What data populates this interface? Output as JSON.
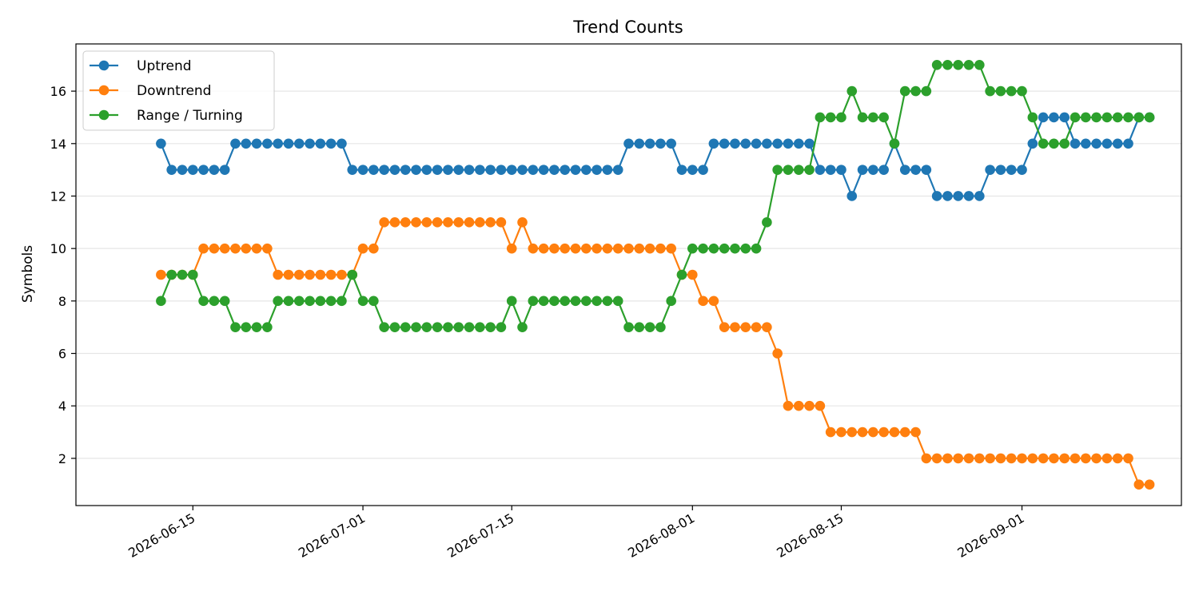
{
  "chart_data": {
    "type": "line",
    "title": "Trend Counts",
    "xlabel": "",
    "ylabel": "Symbols",
    "x_start": "2026-06-12",
    "x_ticks": [
      "2026-06-15",
      "2026-07-01",
      "2026-07-15",
      "2026-08-01",
      "2026-08-15",
      "2026-09-01"
    ],
    "y_ticks": [
      2,
      4,
      6,
      8,
      10,
      12,
      14,
      16
    ],
    "xlim": [
      "2026-06-04",
      "2026-09-16"
    ],
    "ylim": [
      0.2,
      17.8
    ],
    "grid": "horizontal",
    "legend_position": "top-left",
    "series": [
      {
        "name": "Uptrend",
        "color": "#1f77b4",
        "values": [
          14,
          13,
          13,
          13,
          13,
          13,
          13,
          14,
          14,
          14,
          14,
          14,
          14,
          14,
          14,
          14,
          14,
          14,
          13,
          13,
          13,
          13,
          13,
          13,
          13,
          13,
          13,
          13,
          13,
          13,
          13,
          13,
          13,
          13,
          13,
          13,
          13,
          13,
          13,
          13,
          13,
          13,
          13,
          13,
          14,
          14,
          14,
          14,
          14,
          13,
          13,
          13,
          14,
          14,
          14,
          14,
          14,
          14,
          14,
          14,
          14,
          14,
          13,
          13,
          13,
          12,
          13,
          13,
          13,
          14,
          13,
          13,
          13,
          12,
          12,
          12,
          12,
          12,
          13,
          13,
          13,
          13,
          14,
          15,
          15,
          15,
          14,
          14,
          14,
          14,
          14,
          14,
          15,
          15
        ]
      },
      {
        "name": "Downtrend",
        "color": "#ff7f0e",
        "values": [
          9,
          9,
          9,
          9,
          10,
          10,
          10,
          10,
          10,
          10,
          10,
          9,
          9,
          9,
          9,
          9,
          9,
          9,
          9,
          10,
          10,
          11,
          11,
          11,
          11,
          11,
          11,
          11,
          11,
          11,
          11,
          11,
          11,
          10,
          11,
          10,
          10,
          10,
          10,
          10,
          10,
          10,
          10,
          10,
          10,
          10,
          10,
          10,
          10,
          9,
          9,
          8,
          8,
          7,
          7,
          7,
          7,
          7,
          6,
          4,
          4,
          4,
          4,
          3,
          3,
          3,
          3,
          3,
          3,
          3,
          3,
          3,
          2,
          2,
          2,
          2,
          2,
          2,
          2,
          2,
          2,
          2,
          2,
          2,
          2,
          2,
          2,
          2,
          2,
          2,
          2,
          2,
          1,
          1
        ]
      },
      {
        "name": "Range / Turning",
        "color": "#2ca02c",
        "values": [
          8,
          9,
          9,
          9,
          8,
          8,
          8,
          7,
          7,
          7,
          7,
          8,
          8,
          8,
          8,
          8,
          8,
          8,
          9,
          8,
          8,
          7,
          7,
          7,
          7,
          7,
          7,
          7,
          7,
          7,
          7,
          7,
          7,
          8,
          7,
          8,
          8,
          8,
          8,
          8,
          8,
          8,
          8,
          8,
          7,
          7,
          7,
          7,
          8,
          9,
          10,
          10,
          10,
          10,
          10,
          10,
          10,
          11,
          13,
          13,
          13,
          13,
          15,
          15,
          15,
          16,
          15,
          15,
          15,
          14,
          16,
          16,
          16,
          17,
          17,
          17,
          17,
          17,
          16,
          16,
          16,
          16,
          15,
          14,
          14,
          14,
          15,
          15,
          15,
          15,
          15,
          15,
          15,
          15
        ]
      }
    ]
  }
}
